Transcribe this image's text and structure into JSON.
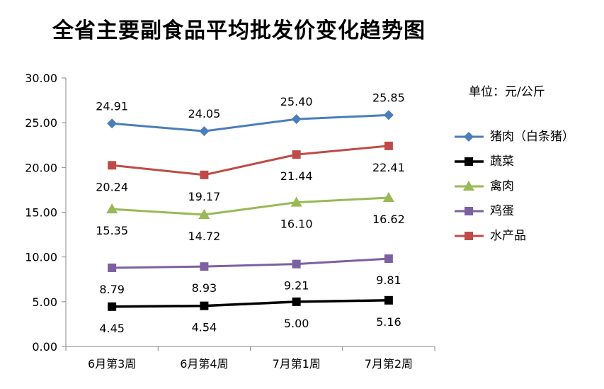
{
  "title": "全省主要副食品平均批发价变化趋势图",
  "unit_note": "单位：元/公斤",
  "chart_data": {
    "type": "line",
    "title": "全省主要副食品平均批发价变化趋势图",
    "categories": [
      "6月第3周",
      "6月第4周",
      "7月第1周",
      "7月第2周"
    ],
    "ylim": [
      0,
      30
    ],
    "yticks": [
      "0.00",
      "5.00",
      "10.00",
      "15.00",
      "20.00",
      "25.00",
      "30.00"
    ],
    "grid": false,
    "legend_position": "right",
    "series": [
      {
        "name": "猪肉（白条猪）",
        "values": [
          24.91,
          24.05,
          25.4,
          25.85
        ],
        "labels": [
          "24.91",
          "24.05",
          "25.40",
          "25.85"
        ],
        "label_position": "above",
        "color": "#4A7EBB",
        "marker": "diamond"
      },
      {
        "name": "蔬菜",
        "values": [
          4.45,
          4.54,
          5.0,
          5.16
        ],
        "labels": [
          "4.45",
          "4.54",
          "5.00",
          "5.16"
        ],
        "label_position": "below",
        "color": "#000000",
        "marker": "square"
      },
      {
        "name": "禽肉",
        "values": [
          15.35,
          14.72,
          16.1,
          16.62
        ],
        "labels": [
          "15.35",
          "14.72",
          "16.10",
          "16.62"
        ],
        "label_position": "below",
        "color": "#98B954",
        "marker": "triangle"
      },
      {
        "name": "鸡蛋",
        "values": [
          8.79,
          8.93,
          9.21,
          9.81
        ],
        "labels": [
          "8.79",
          "8.93",
          "9.21",
          "9.81"
        ],
        "label_position": "below",
        "color": "#7D60A0",
        "marker": "square"
      },
      {
        "name": "水产品",
        "values": [
          20.24,
          19.17,
          21.44,
          22.41
        ],
        "labels": [
          "20.24",
          "19.17",
          "21.44",
          "22.41"
        ],
        "label_position": "below",
        "color": "#BE4B48",
        "marker": "square"
      }
    ]
  }
}
